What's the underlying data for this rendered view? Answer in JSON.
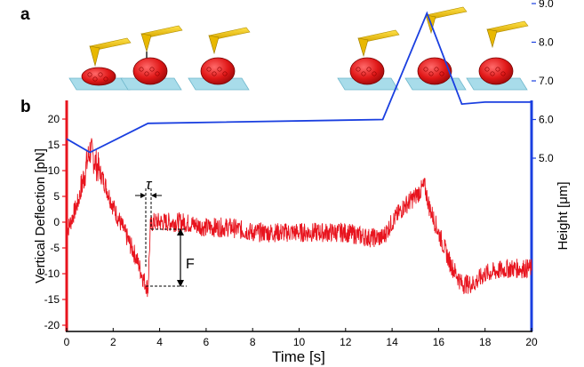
{
  "panels": {
    "a": "a",
    "b": "b"
  },
  "colors": {
    "deflection": "#e8141e",
    "height": "#1a3fe0",
    "substrate": "#a8dcea",
    "cantilever": "#f2cc14",
    "cell": "#e01818"
  },
  "chart_data": {
    "type": "line",
    "title": "",
    "xlabel": "Time [s]",
    "ylabel_left": "Vertical Deflection [pN]",
    "ylabel_right": "Height [μm]",
    "xlim": [
      0,
      20
    ],
    "ylim_left": [
      -21,
      23
    ],
    "ylim_right": [
      4.2,
      9.6
    ],
    "x_ticks": [
      "0",
      "2",
      "4",
      "6",
      "8",
      "10",
      "12",
      "14",
      "16",
      "18",
      "20"
    ],
    "y_left_ticks": [
      "20",
      "15",
      "10",
      "5",
      "0",
      "-5",
      "-10",
      "-15",
      "-20"
    ],
    "y_right_ticks": [
      "9.0",
      "8.0",
      "7.0",
      "6.0",
      "5.0"
    ],
    "grid": false,
    "series": [
      {
        "name": "",
        "axis": "left",
        "x": [
          0,
          0.5,
          0.8,
          1.0,
          1.2,
          1.6,
          2.0,
          2.5,
          3.0,
          3.3,
          3.5,
          3.6,
          3.7,
          4.0,
          5.0,
          6.0,
          7.0,
          8.0,
          9.0,
          10.0,
          11.0,
          12.0,
          13.0,
          13.6,
          14.0,
          14.5,
          15.0,
          15.4,
          15.6,
          16.0,
          16.5,
          17.0,
          17.5,
          18.0,
          19.0,
          20.0
        ],
        "values": [
          -2,
          4,
          10,
          14,
          12,
          8,
          3,
          -2,
          -7,
          -11,
          -13,
          -1,
          0,
          0,
          0,
          -1,
          -1,
          -2,
          -2,
          -2,
          -2,
          -2,
          -3,
          -3,
          0,
          3,
          5,
          7,
          3,
          -2,
          -8,
          -12,
          -12,
          -10,
          -9,
          -9
        ]
      },
      {
        "name": "",
        "axis": "right",
        "x": [
          0,
          1,
          3.5,
          13.6,
          15.5,
          17,
          18,
          20
        ],
        "values": [
          5.5,
          5.15,
          5.9,
          6.0,
          8.75,
          6.4,
          6.45,
          6.45
        ]
      }
    ],
    "annotations": [
      {
        "text": "τ",
        "x_range": [
          3.4,
          3.65
        ]
      },
      {
        "text": "F",
        "x": 3.7,
        "y_range": [
          -12.5,
          -1
        ]
      }
    ]
  }
}
